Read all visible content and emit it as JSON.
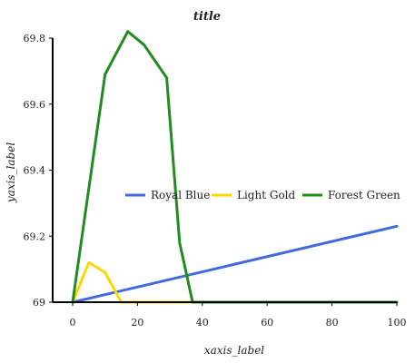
{
  "chart_data": {
    "type": "line",
    "title": "title",
    "xlabel": "xaxis_label",
    "ylabel": "yaxis_label",
    "xlim": [
      0,
      100
    ],
    "ylim": [
      69,
      69.8
    ],
    "xticks": [
      0,
      20,
      40,
      60,
      80,
      100
    ],
    "yticks": [
      69,
      69.2,
      69.4,
      69.6,
      69.8
    ],
    "xtick_labels": [
      "0",
      "20",
      "40",
      "60",
      "80",
      "100"
    ],
    "ytick_labels": [
      "69",
      "69.2",
      "69.4",
      "69.6",
      "69.8"
    ],
    "grid": false,
    "legend_position": "center-right",
    "series": [
      {
        "name": "Royal Blue",
        "color": "#4169e1",
        "x": [
          0,
          100
        ],
        "y": [
          69,
          69.23
        ]
      },
      {
        "name": "Light Gold",
        "color": "#ffd700",
        "x": [
          0,
          5,
          10,
          15,
          20,
          25,
          30,
          35,
          40,
          45,
          50,
          55,
          60,
          65,
          70,
          75,
          80,
          85,
          90,
          95,
          100
        ],
        "y": [
          69,
          69.12,
          69.09,
          69,
          69,
          69,
          69,
          69,
          69,
          69,
          69,
          69,
          69,
          69,
          69,
          69,
          69,
          69,
          69,
          69,
          69
        ]
      },
      {
        "name": "Forest Green",
        "color": "#228b22",
        "x": [
          0,
          10,
          17,
          22,
          29,
          33,
          37,
          40,
          45,
          50,
          55,
          60,
          65,
          70,
          75,
          80,
          85,
          90,
          95,
          100
        ],
        "y": [
          69,
          69.69,
          69.82,
          69.78,
          69.68,
          69.18,
          69,
          69,
          69,
          69,
          69,
          69,
          69,
          69,
          69,
          69,
          69,
          69,
          69,
          69
        ]
      }
    ]
  }
}
